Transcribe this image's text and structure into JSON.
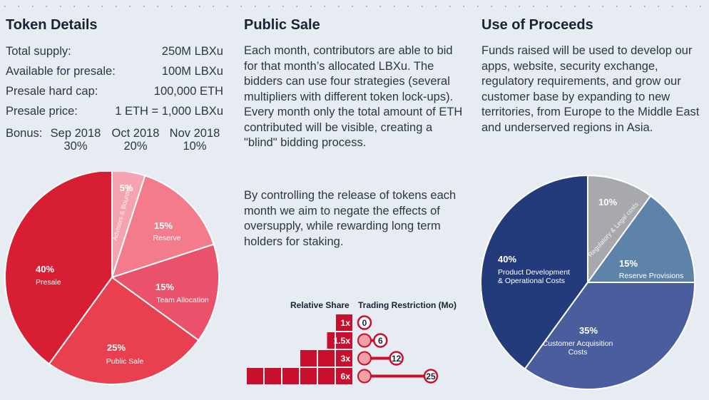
{
  "token_details": {
    "title": "Token Details",
    "rows": [
      {
        "label": "Total supply:",
        "value": "250M LBXu"
      },
      {
        "label": "Available for presale:",
        "value": "100M LBXu"
      },
      {
        "label": "Presale hard cap:",
        "value": "100,000 ETH"
      },
      {
        "label": "Presale price:",
        "value": "1 ETH = 1,000 LBXu"
      }
    ],
    "bonus_label": "Bonus:",
    "bonus": [
      {
        "month": "Sep 2018",
        "pct": "30%"
      },
      {
        "month": "Oct 2018",
        "pct": "20%"
      },
      {
        "month": "Nov 2018",
        "pct": "10%"
      }
    ]
  },
  "public_sale": {
    "title": "Public Sale",
    "p1": "Each month, contributors are able to bid for that month’s allocated LBXu. The bidders can use four strategies (several multipliers with different token lock-ups). Every month only the total amount of ETH contributed will be visible, creating a \"blind\" bidding process.",
    "p2": "By controlling the release of tokens each month we aim to negate the effects of oversupply, while rewarding long term holders for staking.",
    "relative_share_label": "Relative Share",
    "trading_restriction_label": "Trading Restriction (Mo)",
    "strategies": [
      {
        "multiplier": "1x",
        "blocks": 1,
        "months": "0",
        "months_value": 0
      },
      {
        "multiplier": "1.5x",
        "blocks": 1.5,
        "months": "6",
        "months_value": 6
      },
      {
        "multiplier": "3x",
        "blocks": 3,
        "months": "12",
        "months_value": 12
      },
      {
        "multiplier": "6x",
        "blocks": 6,
        "months": "25",
        "months_value": 25
      }
    ]
  },
  "use_of_proceeds": {
    "title": "Use of Proceeds",
    "text": "Funds raised will be used to develop our apps, website, security exchange, regulatory requirements, and grow our customer base by expanding to new territories, from Europe to the Middle East and underserved regions in Asia."
  },
  "colors": {
    "background": "#e6ecf1",
    "token_slices": [
      "#f5a3b1",
      "#f47b8c",
      "#ea526b",
      "#e8404f",
      "#d81e32"
    ],
    "proceeds_slices": [
      "#a7a9ac",
      "#5e83ab",
      "#4a5d9d",
      "#243b7b"
    ],
    "strategy_red": "#c8102e",
    "node_pink": "#f2a0a6"
  },
  "chart_data": [
    {
      "type": "pie",
      "title": "Token Details",
      "slices": [
        {
          "label": "Advisors & Bounties",
          "pct_label": "5%",
          "value": 5
        },
        {
          "label": "Reserve",
          "pct_label": "15%",
          "value": 15
        },
        {
          "label": "Team Allocation",
          "pct_label": "15%",
          "value": 15
        },
        {
          "label": "Public Sale",
          "pct_label": "25%",
          "value": 25
        },
        {
          "label": "Presale",
          "pct_label": "40%",
          "value": 40
        }
      ]
    },
    {
      "type": "pie",
      "title": "Use of Proceeds",
      "slices": [
        {
          "label": "Regulatory & Legal costs",
          "pct_label": "10%",
          "value": 10
        },
        {
          "label": "Reserve Provisions",
          "pct_label": "15%",
          "value": 15
        },
        {
          "label": "Customer Acquisition Costs",
          "label_lines": [
            "Customer Acquisition",
            "Costs"
          ],
          "pct_label": "35%",
          "value": 35
        },
        {
          "label": "Product Development & Operational Costs",
          "label_lines": [
            "Product Development",
            "& Operational Costs"
          ],
          "pct_label": "40%",
          "value": 40
        }
      ]
    }
  ]
}
